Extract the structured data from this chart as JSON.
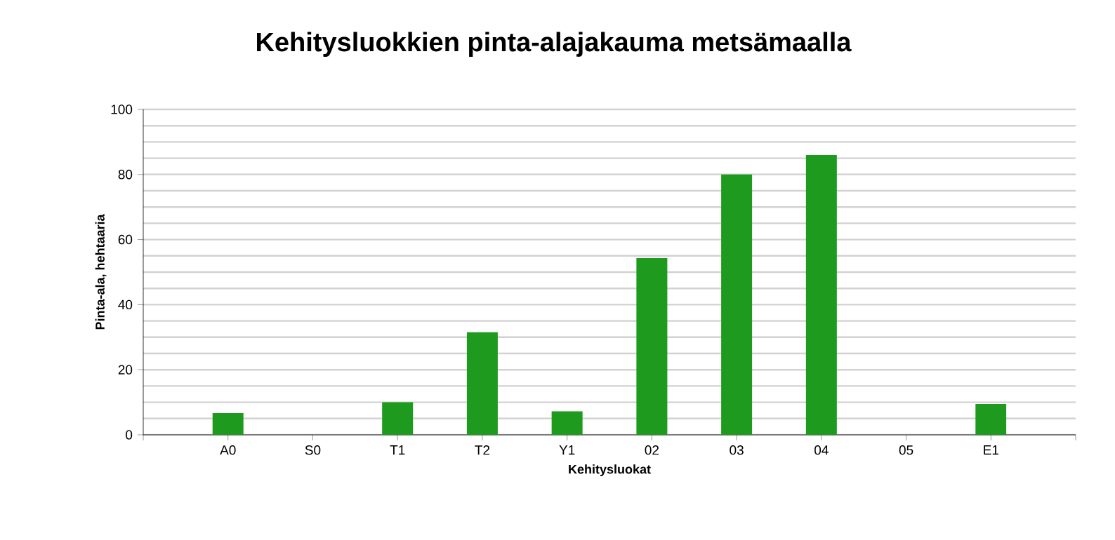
{
  "chart_data": {
    "type": "bar",
    "title": "Kehitysluokkien pinta-alajakauma metsämaalla",
    "xlabel": "Kehitysluokat",
    "ylabel": "Pinta-ala, hehtaaria",
    "categories": [
      "A0",
      "S0",
      "T1",
      "T2",
      "Y1",
      "02",
      "03",
      "04",
      "05",
      "E1"
    ],
    "values": [
      6.7,
      0,
      10,
      31.5,
      7.2,
      54.3,
      80,
      86,
      0,
      9.5
    ],
    "color": "#1e9a1e",
    "ylim": [
      0,
      100
    ],
    "yticks": [
      0,
      20,
      40,
      60,
      80,
      100
    ],
    "grid": "y"
  }
}
